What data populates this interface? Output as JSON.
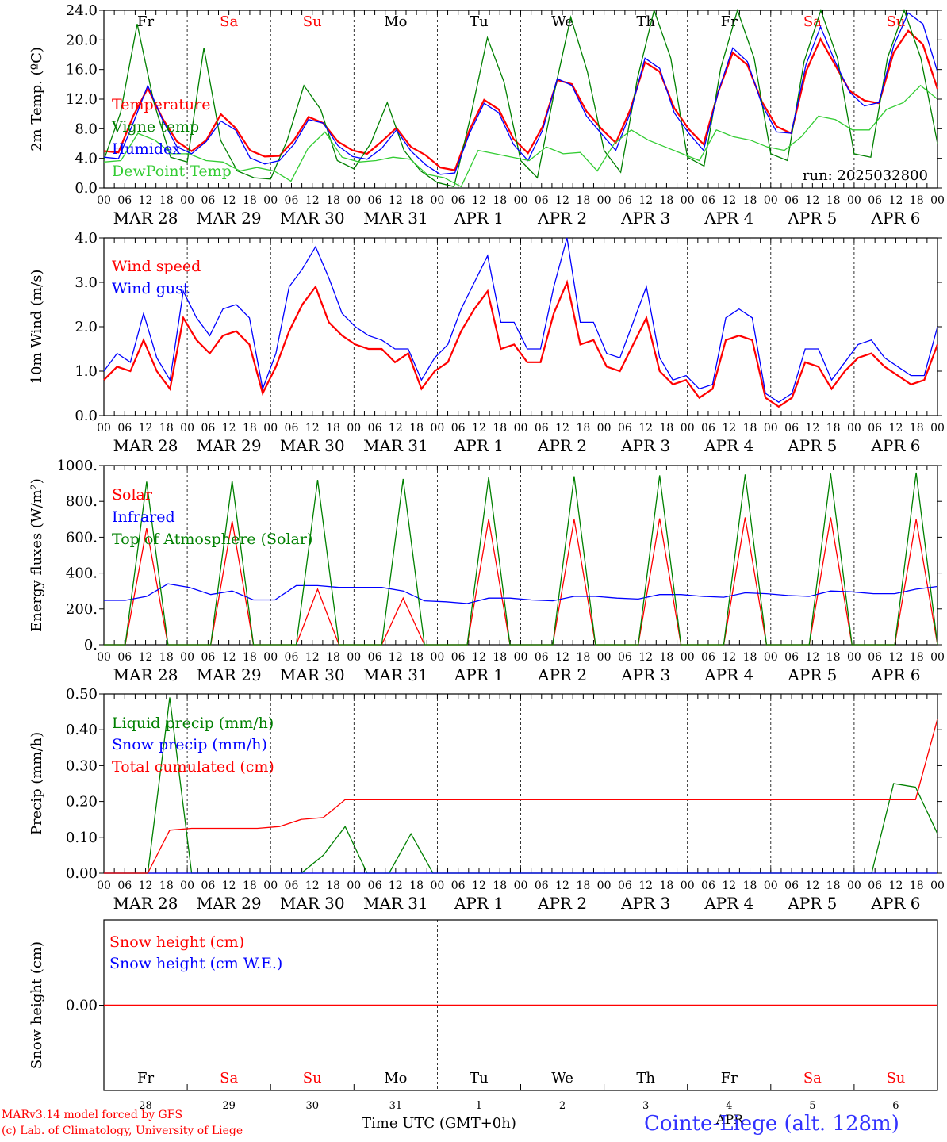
{
  "footer": {
    "model": "MARv3.14 model forced by GFS",
    "lab": "(c) Lab. of Climatology, University of Liege",
    "time_label": "Time UTC (GMT+0h)",
    "station": "Cointe-Liege (alt. 128m)"
  },
  "colors": {
    "red": "#ff0000",
    "blue": "#0000ff",
    "green": "#008000",
    "lightgreen": "#33cc33",
    "weekend": "#ff0000",
    "weekday": "#000000"
  },
  "chart_data": [
    {
      "type": "line",
      "ylabel": "2m Temp. (ºC)",
      "ylim": [
        0,
        26
      ],
      "yticks": [
        "0.0",
        "4.0",
        "8.0",
        "12.0",
        "16.0",
        "20.0",
        "24.0"
      ],
      "x_start": "2025-03-28 00",
      "x_step_hours": 6,
      "day_labels": [
        "Fr",
        "Sa",
        "Su",
        "Mo",
        "Tu",
        "We",
        "Th",
        "Fr",
        "Sa",
        "Su"
      ],
      "date_labels": [
        "MAR 28",
        "MAR 29",
        "MAR 30",
        "MAR 31",
        "APR  1",
        "APR  2",
        "APR  3",
        "APR  4",
        "APR  5",
        "APR  6"
      ],
      "hour_labels": [
        "00",
        "06",
        "12",
        "18"
      ],
      "annotation": "run: 2025032800",
      "series": [
        {
          "name": "Temperature",
          "color": "red",
          "values": [
            5.4,
            5.2,
            10.5,
            14.6,
            10.2,
            6.8,
            5.4,
            7.0,
            10.8,
            8.8,
            5.5,
            4.6,
            4.7,
            7.0,
            10.4,
            9.5,
            6.8,
            5.5,
            5.0,
            6.8,
            8.8,
            6.0,
            4.8,
            3.0,
            2.6,
            8.5,
            12.9,
            11.5,
            7.2,
            5.1,
            9.0,
            15.8,
            15.2,
            11.2,
            8.7,
            6.6,
            11.5,
            18.4,
            17.0,
            11.7,
            8.6,
            6.4,
            14.0,
            19.8,
            18.0,
            12.6,
            9.0,
            8.0,
            17.0,
            21.8,
            18.0,
            14.2,
            12.8,
            12.4,
            19.8,
            23.0,
            21.0,
            14.5
          ]
        },
        {
          "name": "Vigne temp",
          "color": "green",
          "values": [
            4.1,
            11.0,
            24.0,
            12.5,
            4.5,
            3.8,
            20.5,
            7.0,
            2.5,
            1.5,
            1.3,
            7.0,
            15.0,
            11.5,
            4.0,
            2.8,
            6.5,
            12.5,
            5.5,
            2.5,
            0.8,
            0.2,
            10.5,
            22.0,
            15.5,
            4.0,
            1.5,
            13.8,
            25.0,
            17.0,
            5.5,
            2.3,
            16.0,
            26.5,
            19.0,
            4.5,
            3.2,
            17.5,
            27.0,
            19.0,
            5.0,
            4.0,
            18.5,
            27.0,
            19.0,
            5.0,
            4.5,
            19.0,
            27.5,
            19.0,
            6.5
          ]
        },
        {
          "name": "Humidex",
          "color": "blue",
          "values": [
            4.5,
            4.3,
            9.5,
            15.0,
            10.0,
            6.0,
            5.0,
            6.8,
            9.8,
            8.5,
            4.4,
            3.5,
            4.0,
            6.4,
            10.0,
            9.5,
            6.2,
            4.6,
            4.2,
            5.8,
            8.5,
            5.4,
            3.4,
            2.0,
            2.2,
            8.0,
            12.4,
            11.0,
            6.4,
            4.0,
            8.5,
            16.0,
            15.0,
            10.5,
            8.0,
            5.5,
            11.0,
            19.0,
            17.5,
            11.0,
            8.0,
            5.5,
            14.0,
            20.5,
            18.5,
            12.2,
            8.2,
            8.0,
            18.0,
            23.6,
            18.5,
            14.0,
            12.0,
            12.5,
            20.8,
            25.6,
            24.0,
            17.0
          ]
        },
        {
          "name": "DewPoint Temp",
          "color": "lightgreen",
          "values": [
            3.8,
            4.0,
            8.0,
            7.0,
            5.0,
            5.0,
            4.0,
            3.8,
            2.5,
            3.0,
            2.5,
            1.0,
            5.8,
            8.2,
            4.5,
            3.8,
            4.0,
            4.5,
            4.2,
            2.0,
            1.5,
            0.2,
            5.5,
            5.0,
            4.5,
            4.0,
            6.0,
            5.0,
            5.2,
            2.5,
            6.5,
            8.5,
            7.0,
            6.0,
            5.0,
            4.0,
            8.5,
            7.5,
            7.0,
            6.0,
            5.5,
            7.5,
            10.5,
            10.0,
            8.5,
            8.5,
            11.5,
            12.5,
            15.0,
            13.0
          ]
        }
      ]
    },
    {
      "type": "line",
      "ylabel": "10m Wind (m/s)",
      "ylim": [
        0,
        4
      ],
      "yticks": [
        "0.0",
        "1.0",
        "2.0",
        "3.0",
        "4.0"
      ],
      "series": [
        {
          "name": "Wind speed",
          "color": "red",
          "values": [
            0.8,
            1.1,
            1.0,
            1.7,
            1.0,
            0.6,
            2.2,
            1.7,
            1.4,
            1.8,
            1.9,
            1.6,
            0.5,
            1.1,
            1.9,
            2.5,
            2.9,
            2.1,
            1.8,
            1.6,
            1.5,
            1.5,
            1.2,
            1.4,
            0.6,
            1.0,
            1.2,
            1.9,
            2.4,
            2.8,
            1.5,
            1.6,
            1.2,
            1.2,
            2.3,
            3.0,
            1.6,
            1.7,
            1.1,
            1.0,
            1.6,
            2.2,
            1.0,
            0.7,
            0.8,
            0.4,
            0.6,
            1.7,
            1.8,
            1.7,
            0.4,
            0.2,
            0.4,
            1.2,
            1.1,
            0.6,
            1.0,
            1.3,
            1.4,
            1.1,
            0.9,
            0.7,
            0.8,
            1.6
          ]
        },
        {
          "name": "Wind gust",
          "color": "blue",
          "values": [
            1.0,
            1.4,
            1.2,
            2.3,
            1.3,
            0.8,
            2.8,
            2.2,
            1.8,
            2.4,
            2.5,
            2.2,
            0.6,
            1.4,
            2.9,
            3.3,
            3.8,
            3.1,
            2.3,
            2.0,
            1.8,
            1.7,
            1.5,
            1.5,
            0.8,
            1.3,
            1.6,
            2.4,
            3.0,
            3.6,
            2.1,
            2.1,
            1.5,
            1.5,
            2.9,
            4.0,
            2.1,
            2.1,
            1.4,
            1.3,
            2.1,
            2.9,
            1.3,
            0.8,
            0.9,
            0.6,
            0.7,
            2.2,
            2.4,
            2.2,
            0.5,
            0.3,
            0.5,
            1.5,
            1.5,
            0.8,
            1.2,
            1.6,
            1.7,
            1.3,
            1.1,
            0.9,
            0.9,
            2.0
          ]
        }
      ]
    },
    {
      "type": "line",
      "ylabel": "Energy fluxes (W/m²)",
      "ylim": [
        0,
        1000
      ],
      "yticks": [
        "0.",
        "200.",
        "400.",
        "600.",
        "800.",
        "1000."
      ],
      "series": [
        {
          "name": "Solar",
          "color": "red",
          "values": [
            0,
            0,
            650,
            0,
            0,
            0,
            690,
            0,
            0,
            0,
            310,
            0,
            0,
            0,
            260,
            0,
            0,
            0,
            700,
            0,
            0,
            0,
            700,
            0,
            0,
            0,
            705,
            0,
            0,
            0,
            710,
            0,
            0,
            0,
            710,
            0,
            0,
            0,
            700,
            0
          ]
        },
        {
          "name": "Infrared",
          "color": "blue",
          "values": [
            248,
            248,
            270,
            340,
            320,
            280,
            300,
            250,
            250,
            330,
            330,
            320,
            320,
            320,
            300,
            245,
            240,
            230,
            260,
            260,
            250,
            245,
            270,
            270,
            260,
            255,
            280,
            280,
            270,
            265,
            290,
            285,
            275,
            270,
            300,
            295,
            285,
            285,
            310,
            325
          ]
        },
        {
          "name": "Top of Atmosphere (Solar)",
          "color": "green",
          "values": [
            0,
            0,
            910,
            0,
            0,
            0,
            915,
            0,
            0,
            0,
            920,
            0,
            0,
            0,
            925,
            0,
            0,
            0,
            935,
            0,
            0,
            0,
            940,
            0,
            0,
            0,
            945,
            0,
            0,
            0,
            950,
            0,
            0,
            0,
            955,
            0,
            0,
            0,
            960,
            0
          ]
        }
      ]
    },
    {
      "type": "line",
      "ylabel": "Precip (mm/h)",
      "ylim": [
        0,
        0.5
      ],
      "yticks": [
        "0.00",
        "0.10",
        "0.20",
        "0.30",
        "0.40",
        "0.50"
      ],
      "series": [
        {
          "name": "Liquid precip (mm/h)",
          "color": "green",
          "values": [
            0,
            0,
            0,
            0.49,
            0,
            0,
            0,
            0,
            0,
            0,
            0.05,
            0.13,
            0,
            0,
            0.11,
            0,
            0,
            0,
            0,
            0,
            0,
            0,
            0,
            0,
            0,
            0,
            0,
            0,
            0,
            0,
            0,
            0,
            0,
            0,
            0,
            0,
            0.25,
            0.24,
            0.11
          ]
        },
        {
          "name": "Snow precip (mm/h)",
          "color": "blue",
          "values": [
            0,
            0,
            0,
            0,
            0,
            0,
            0,
            0,
            0,
            0,
            0,
            0,
            0,
            0,
            0,
            0,
            0,
            0,
            0,
            0,
            0,
            0,
            0,
            0,
            0,
            0,
            0,
            0,
            0,
            0,
            0,
            0,
            0,
            0,
            0,
            0,
            0,
            0,
            0,
            0
          ]
        },
        {
          "name": "Total cumulated (cm)",
          "color": "red",
          "values": [
            0,
            0,
            0,
            0.12,
            0.125,
            0.125,
            0.125,
            0.125,
            0.13,
            0.15,
            0.155,
            0.205,
            0.205,
            0.205,
            0.205,
            0.205,
            0.205,
            0.205,
            0.205,
            0.205,
            0.205,
            0.205,
            0.205,
            0.205,
            0.205,
            0.205,
            0.205,
            0.205,
            0.205,
            0.205,
            0.205,
            0.205,
            0.205,
            0.205,
            0.205,
            0.205,
            0.205,
            0.205,
            0.43
          ]
        }
      ]
    },
    {
      "type": "line",
      "ylabel": "Snow height (cm)",
      "yticks": [
        "0.00"
      ],
      "series": [
        {
          "name": "Snow height (cm)",
          "color": "red",
          "values": [
            0,
            0
          ]
        },
        {
          "name": "Snow height (cm W.E.)",
          "color": "blue",
          "values": [
            0,
            0
          ]
        }
      ],
      "day_labels": [
        "Fr",
        "Sa",
        "Su",
        "Mo",
        "Tu",
        "We",
        "Th",
        "Fr",
        "Sa",
        "Su"
      ],
      "day_numbers": [
        "28",
        "29",
        "30",
        "31",
        "1",
        "2",
        "3",
        "4",
        "5",
        "6"
      ],
      "month_label": "APR"
    }
  ]
}
